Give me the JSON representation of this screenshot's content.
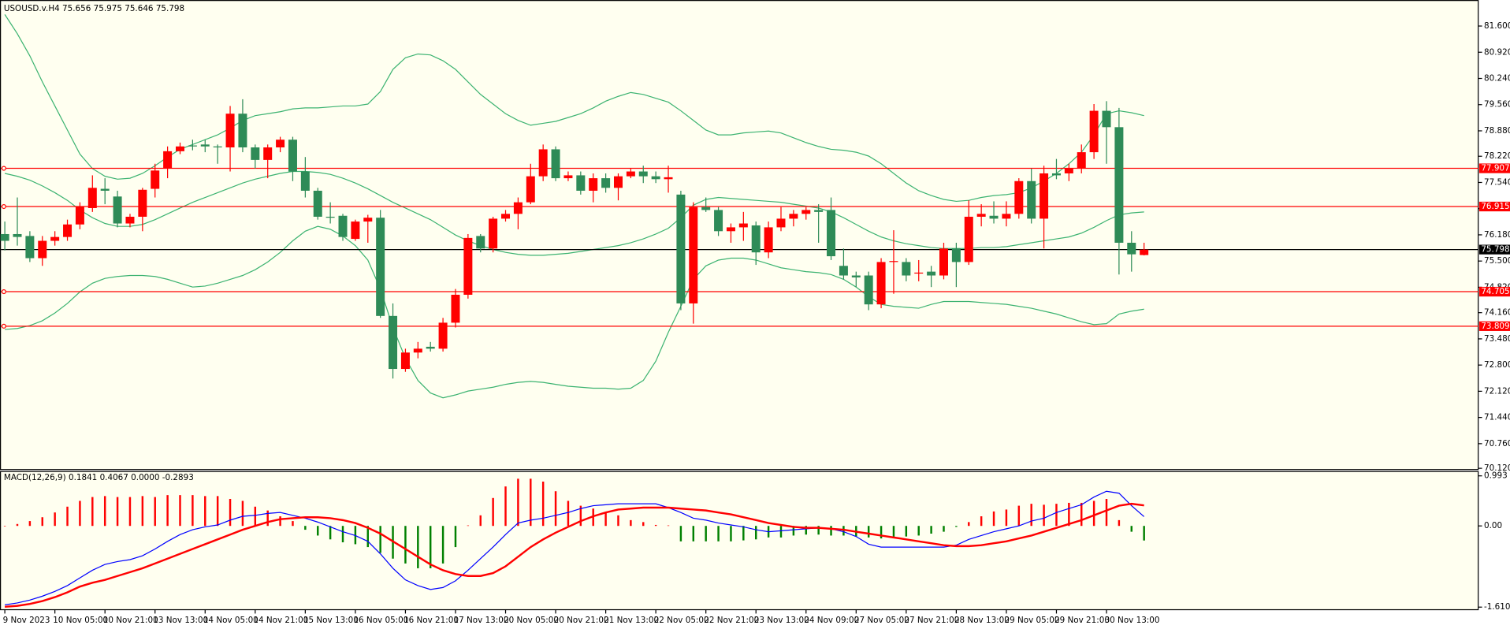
{
  "chart_data": [
    {
      "type": "candlestick",
      "title": "USOUSD.v.H4  75.656 75.975 75.646 75.798",
      "up_color": "#ff0000",
      "down_color": "#2e8b57",
      "open": [
        76.2,
        76.2,
        76.15,
        75.575,
        76.025,
        76.125,
        76.45,
        76.875,
        77.375,
        77.175,
        76.475,
        76.65,
        77.375,
        77.9,
        78.35,
        78.5,
        78.525,
        78.475,
        78.45,
        79.325,
        78.45,
        78.125,
        78.45,
        78.65,
        77.825,
        77.325,
        76.65,
        76.675,
        76.075,
        76.525,
        76.625,
        74.075,
        72.7,
        73.125,
        73.275,
        73.225,
        73.9,
        74.625,
        76.15,
        75.825,
        76.6,
        76.725,
        77.025,
        77.7,
        78.4,
        77.65,
        77.725,
        77.325,
        77.65,
        77.4,
        77.7,
        77.825,
        77.7,
        77.625,
        77.225,
        74.4,
        76.9,
        76.825,
        76.275,
        76.375,
        76.425,
        75.725,
        76.375,
        76.6,
        76.725,
        76.825,
        76.825,
        75.375,
        75.125,
        75.125,
        74.375,
        75.475,
        75.475,
        75.175,
        75.225,
        75.125,
        75.825,
        75.475,
        76.65,
        76.675,
        76.6,
        76.725,
        77.575,
        76.6,
        77.775,
        77.775,
        77.9,
        78.325,
        79.4,
        78.975,
        75.975,
        75.656
      ],
      "high": [
        76.525,
        77.15,
        76.275,
        76.15,
        76.275,
        76.575,
        77.025,
        77.725,
        77.65,
        77.325,
        76.725,
        77.4,
        78.025,
        78.475,
        78.575,
        78.65,
        78.65,
        78.525,
        79.525,
        79.7,
        78.525,
        78.525,
        78.725,
        78.725,
        78.2,
        77.4,
        77.025,
        76.725,
        76.575,
        76.7,
        76.825,
        74.4,
        73.225,
        73.4,
        73.4,
        74.025,
        74.775,
        76.2,
        76.2,
        76.65,
        76.825,
        77.15,
        78.025,
        78.525,
        78.475,
        77.825,
        77.825,
        77.775,
        77.775,
        77.775,
        77.9,
        77.975,
        77.825,
        77.975,
        77.325,
        77.025,
        77.15,
        76.9,
        76.475,
        76.775,
        76.525,
        76.525,
        76.9,
        76.825,
        76.9,
        76.975,
        77.15,
        75.825,
        75.225,
        75.225,
        75.575,
        76.3,
        75.575,
        75.525,
        75.375,
        75.975,
        75.975,
        77.075,
        76.975,
        77.05,
        77.05,
        77.65,
        77.9,
        77.975,
        78.15,
        78.025,
        78.525,
        79.575,
        79.65,
        79.475,
        76.275,
        75.975
      ],
      "low": [
        75.775,
        75.9,
        75.475,
        75.375,
        75.9,
        76.025,
        76.325,
        76.775,
        76.975,
        76.375,
        76.375,
        76.275,
        77.15,
        77.65,
        78.275,
        78.375,
        78.325,
        78.025,
        77.825,
        78.325,
        77.9,
        77.65,
        78.325,
        77.575,
        77.15,
        76.575,
        76.475,
        76.025,
        76.025,
        75.975,
        74.025,
        72.45,
        72.625,
        72.975,
        73.15,
        73.15,
        73.775,
        74.525,
        75.725,
        75.725,
        76.525,
        76.325,
        76.975,
        77.575,
        77.575,
        77.575,
        77.225,
        77.025,
        77.275,
        77.075,
        77.65,
        77.525,
        77.525,
        77.275,
        74.225,
        73.875,
        76.775,
        76.15,
        75.975,
        76.025,
        75.4,
        75.575,
        76.275,
        76.4,
        76.575,
        75.975,
        75.525,
        75.025,
        74.825,
        74.225,
        74.275,
        74.65,
        74.975,
        74.975,
        74.825,
        75.025,
        74.825,
        75.4,
        76.4,
        76.475,
        76.4,
        76.6,
        76.475,
        75.825,
        77.625,
        77.575,
        77.775,
        78.15,
        78.025,
        75.15,
        75.225,
        75.646
      ],
      "close": [
        76.025,
        76.125,
        75.575,
        76.025,
        76.125,
        76.45,
        76.925,
        77.4,
        77.325,
        76.475,
        76.65,
        77.35,
        77.85,
        78.35,
        78.475,
        78.475,
        78.475,
        78.45,
        79.325,
        78.45,
        78.125,
        78.45,
        78.65,
        77.825,
        77.325,
        76.65,
        76.625,
        76.125,
        76.525,
        76.625,
        74.075,
        72.7,
        73.125,
        73.225,
        73.225,
        73.9,
        74.625,
        76.1,
        75.825,
        76.6,
        76.725,
        77.025,
        77.7,
        78.4,
        77.65,
        77.725,
        77.325,
        77.65,
        77.4,
        77.7,
        77.825,
        77.7,
        77.625,
        77.675,
        74.4,
        76.9,
        76.825,
        76.275,
        76.375,
        76.475,
        75.725,
        76.375,
        76.6,
        76.725,
        76.825,
        76.775,
        75.625,
        75.125,
        75.075,
        74.375,
        75.475,
        75.5,
        75.125,
        75.2,
        75.125,
        75.825,
        75.475,
        76.65,
        76.725,
        76.6,
        76.725,
        77.575,
        76.6,
        77.775,
        77.725,
        77.9,
        78.325,
        79.4,
        78.975,
        75.975,
        75.675,
        75.798
      ],
      "bands": {
        "color": "#3cb371",
        "upper": [
          81.9,
          81.4,
          80.825,
          80.15,
          79.525,
          78.9,
          78.275,
          77.9,
          77.7,
          77.625,
          77.65,
          77.775,
          77.975,
          78.2,
          78.4,
          78.525,
          78.65,
          78.775,
          78.95,
          79.15,
          79.275,
          79.325,
          79.375,
          79.45,
          79.475,
          79.475,
          79.5,
          79.525,
          79.525,
          79.575,
          79.9,
          80.475,
          80.775,
          80.875,
          80.85,
          80.7,
          80.475,
          80.15,
          79.825,
          79.575,
          79.325,
          79.15,
          79.025,
          79.075,
          79.125,
          79.225,
          79.325,
          79.475,
          79.65,
          79.775,
          79.875,
          79.825,
          79.725,
          79.625,
          79.4,
          79.15,
          78.9,
          78.775,
          78.775,
          78.825,
          78.85,
          78.875,
          78.825,
          78.7,
          78.575,
          78.475,
          78.4,
          78.375,
          78.325,
          78.225,
          78.025,
          77.775,
          77.525,
          77.325,
          77.2,
          77.1,
          77.05,
          77.075,
          77.15,
          77.2,
          77.225,
          77.275,
          77.4,
          77.575,
          77.775,
          78.025,
          78.325,
          78.775,
          79.325,
          79.4,
          79.35,
          79.275
        ],
        "middle": [
          77.775,
          77.7,
          77.6,
          77.45,
          77.275,
          77.075,
          76.825,
          76.625,
          76.475,
          76.4,
          76.4,
          76.45,
          76.575,
          76.725,
          76.875,
          77.025,
          77.15,
          77.275,
          77.4,
          77.525,
          77.625,
          77.7,
          77.775,
          77.825,
          77.825,
          77.8,
          77.75,
          77.65,
          77.525,
          77.375,
          77.2,
          77.025,
          76.875,
          76.725,
          76.575,
          76.375,
          76.175,
          76.025,
          75.9,
          75.8,
          75.725,
          75.675,
          75.65,
          75.65,
          75.675,
          75.7,
          75.75,
          75.8,
          75.85,
          75.9,
          75.975,
          76.075,
          76.2,
          76.35,
          76.625,
          76.95,
          77.1,
          77.15,
          77.125,
          77.1,
          77.075,
          77.05,
          77.025,
          76.975,
          76.925,
          76.875,
          76.775,
          76.625,
          76.45,
          76.275,
          76.125,
          76.025,
          75.95,
          75.9,
          75.85,
          75.825,
          75.825,
          75.825,
          75.85,
          75.85,
          75.875,
          75.925,
          75.975,
          76.025,
          76.075,
          76.125,
          76.225,
          76.375,
          76.55,
          76.7,
          76.75,
          76.775
        ],
        "lower": [
          73.725,
          73.75,
          73.825,
          73.95,
          74.15,
          74.4,
          74.7,
          74.925,
          75.05,
          75.1,
          75.125,
          75.125,
          75.1,
          75.025,
          74.925,
          74.825,
          74.85,
          74.925,
          75.025,
          75.125,
          75.275,
          75.475,
          75.725,
          76.025,
          76.275,
          76.4,
          76.325,
          76.15,
          75.9,
          75.525,
          74.775,
          73.775,
          72.975,
          72.4,
          72.075,
          71.95,
          72.025,
          72.125,
          72.175,
          72.225,
          72.3,
          72.35,
          72.375,
          72.35,
          72.3,
          72.25,
          72.225,
          72.2,
          72.2,
          72.175,
          72.2,
          72.4,
          72.9,
          73.65,
          74.325,
          75.025,
          75.375,
          75.525,
          75.575,
          75.575,
          75.525,
          75.425,
          75.325,
          75.275,
          75.225,
          75.2,
          75.15,
          75.025,
          74.825,
          74.575,
          74.375,
          74.325,
          74.3,
          74.275,
          74.375,
          74.45,
          74.45,
          74.45,
          74.425,
          74.4,
          74.375,
          74.325,
          74.275,
          74.2,
          74.125,
          74.025,
          73.925,
          73.85,
          73.875,
          74.125,
          74.2,
          74.25
        ]
      },
      "levels": [
        77.907,
        76.915,
        74.705,
        73.809
      ],
      "level_color": "#ff0000",
      "last_color": "#000000",
      "ylim": [
        70.1,
        82.225
      ],
      "yticks": [
        {
          "value": 81.6,
          "label": "81.600"
        },
        {
          "value": 80.92,
          "label": "80.920"
        },
        {
          "value": 80.24,
          "label": "80.240"
        },
        {
          "value": 79.56,
          "label": "79.560"
        },
        {
          "value": 78.88,
          "label": "78.880"
        },
        {
          "value": 78.22,
          "label": "78.220"
        },
        {
          "value": 77.54,
          "label": "77.540"
        },
        {
          "value": 76.86,
          "label": "76.860"
        },
        {
          "value": 76.18,
          "label": "76.180"
        },
        {
          "value": 75.5,
          "label": "75.500"
        },
        {
          "value": 74.82,
          "label": "74.820"
        },
        {
          "value": 74.16,
          "label": "74.160"
        },
        {
          "value": 73.48,
          "label": "73.480"
        },
        {
          "value": 72.8,
          "label": "72.800"
        },
        {
          "value": 72.12,
          "label": "72.120"
        },
        {
          "value": 71.44,
          "label": "71.440"
        },
        {
          "value": 70.76,
          "label": "70.760"
        },
        {
          "value": 70.12,
          "label": "70.120"
        }
      ]
    },
    {
      "type": "macd",
      "title": "MACD(12,26,9) 0.1841 0.4067 0.0000 -0.2893",
      "categories": [
        "9 Nov 2023",
        null,
        null,
        null,
        "10 Nov 05:00",
        null,
        null,
        null,
        "10 Nov 21:00",
        null,
        null,
        null,
        "13 Nov 13:00",
        null,
        null,
        null,
        "14 Nov 05:00",
        null,
        null,
        null,
        "14 Nov 21:00",
        null,
        null,
        null,
        "15 Nov 13:00",
        null,
        null,
        null,
        "16 Nov 05:00",
        null,
        null,
        null,
        "16 Nov 21:00",
        null,
        null,
        null,
        "17 Nov 13:00",
        null,
        null,
        null,
        "20 Nov 05:00",
        null,
        null,
        null,
        "20 Nov 21:00",
        null,
        null,
        null,
        "21 Nov 13:00",
        null,
        null,
        null,
        "22 Nov 05:00",
        null,
        null,
        null,
        "22 Nov 21:00",
        null,
        null,
        null,
        "23 Nov 13:00",
        null,
        null,
        null,
        "24 Nov 09:00",
        null,
        null,
        null,
        "27 Nov 05:00",
        null,
        null,
        null,
        "27 Nov 21:00",
        null,
        null,
        null,
        "28 Nov 13:00",
        null,
        null,
        null,
        "29 Nov 05:00",
        null,
        null,
        null,
        "29 Nov 21:00",
        null,
        null,
        null,
        "30 Nov 13:00",
        null,
        null,
        null
      ],
      "histogram": [
        0,
        0.038,
        0.096,
        0.172,
        0.267,
        0.382,
        0.497,
        0.573,
        0.592,
        0.573,
        0.573,
        0.592,
        0.573,
        0.611,
        0.611,
        0.611,
        0.592,
        0.592,
        0.535,
        0.497,
        0.382,
        0.306,
        0.191,
        0.096,
        -0.076,
        -0.191,
        -0.267,
        -0.325,
        -0.363,
        -0.42,
        -0.535,
        -0.649,
        -0.745,
        -0.84,
        -0.84,
        -0.745,
        -0.42,
        0.01,
        0.21,
        0.554,
        0.783,
        0.936,
        0.936,
        0.879,
        0.688,
        0.497,
        0.401,
        0.344,
        0.267,
        0.21,
        0.115,
        0.076,
        0.02,
        0.01,
        -0.306,
        -0.306,
        -0.306,
        -0.306,
        -0.306,
        -0.287,
        -0.267,
        -0.229,
        -0.229,
        -0.191,
        -0.172,
        -0.172,
        -0.191,
        -0.191,
        -0.21,
        -0.229,
        -0.248,
        -0.229,
        -0.21,
        -0.191,
        -0.153,
        -0.115,
        -0.02,
        0.076,
        0.191,
        0.287,
        0.325,
        0.401,
        0.439,
        0.42,
        0.439,
        0.458,
        0.458,
        0.497,
        0.535,
        0.115,
        -0.115,
        -0.2893
      ],
      "hist_up_color": "#ff0000",
      "hist_down_color": "#008000",
      "main": [
        -1.566,
        -1.528,
        -1.471,
        -1.394,
        -1.299,
        -1.184,
        -1.031,
        -0.879,
        -0.764,
        -0.707,
        -0.669,
        -0.592,
        -0.458,
        -0.306,
        -0.172,
        -0.076,
        -0.019,
        0.019,
        0.115,
        0.191,
        0.21,
        0.248,
        0.267,
        0.21,
        0.153,
        0.076,
        -0.019,
        -0.115,
        -0.191,
        -0.306,
        -0.554,
        -0.84,
        -1.07,
        -1.184,
        -1.261,
        -1.222,
        -1.089,
        -0.879,
        -0.649,
        -0.42,
        -0.172,
        0.057,
        0.115,
        0.153,
        0.21,
        0.267,
        0.344,
        0.401,
        0.42,
        0.439,
        0.439,
        0.439,
        0.439,
        0.363,
        0.267,
        0.153,
        0.115,
        0.057,
        0.019,
        -0.019,
        -0.076,
        -0.115,
        -0.096,
        -0.076,
        -0.057,
        -0.038,
        -0.057,
        -0.115,
        -0.21,
        -0.363,
        -0.42,
        -0.42,
        -0.42,
        -0.42,
        -0.42,
        -0.42,
        -0.382,
        -0.267,
        -0.191,
        -0.115,
        -0.057,
        0,
        0.096,
        0.153,
        0.267,
        0.344,
        0.42,
        0.573,
        0.688,
        0.649,
        0.401,
        0.1841
      ],
      "main_color": "#0000ff",
      "signal": [
        -1.604,
        -1.585,
        -1.547,
        -1.49,
        -1.413,
        -1.318,
        -1.203,
        -1.127,
        -1.07,
        -0.993,
        -0.917,
        -0.84,
        -0.745,
        -0.649,
        -0.554,
        -0.458,
        -0.363,
        -0.267,
        -0.172,
        -0.076,
        0,
        0.076,
        0.134,
        0.153,
        0.172,
        0.172,
        0.153,
        0.115,
        0.057,
        -0.038,
        -0.153,
        -0.306,
        -0.458,
        -0.611,
        -0.764,
        -0.879,
        -0.955,
        -0.993,
        -0.993,
        -0.936,
        -0.802,
        -0.611,
        -0.42,
        -0.267,
        -0.134,
        -0.019,
        0.096,
        0.191,
        0.267,
        0.325,
        0.344,
        0.363,
        0.363,
        0.363,
        0.344,
        0.325,
        0.306,
        0.267,
        0.229,
        0.172,
        0.115,
        0.057,
        0.019,
        -0.019,
        -0.038,
        -0.038,
        -0.057,
        -0.076,
        -0.115,
        -0.153,
        -0.191,
        -0.229,
        -0.267,
        -0.306,
        -0.344,
        -0.382,
        -0.401,
        -0.401,
        -0.382,
        -0.344,
        -0.306,
        -0.248,
        -0.191,
        -0.115,
        -0.038,
        0.038,
        0.115,
        0.21,
        0.306,
        0.401,
        0.439,
        0.4067
      ],
      "signal_color": "#ff0000",
      "ylim": [
        -1.662,
        1.07
      ],
      "yticks": [
        0.993,
        {
          "value": 0,
          "label": "0.00"
        },
        -1.6106
      ]
    }
  ]
}
